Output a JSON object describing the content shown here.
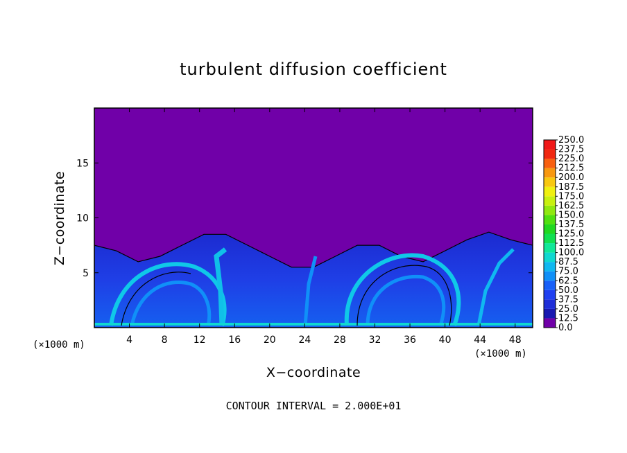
{
  "chart_data": {
    "type": "heatmap",
    "title": "turbulent diffusion coefficient",
    "xlabel": "X−coordinate",
    "ylabel": "Z−coordinate",
    "x_unit": "(×1000 m)",
    "z_unit": "(×1000 m)",
    "xlim": [
      0,
      50
    ],
    "zlim": [
      0,
      20
    ],
    "x_ticks": [
      4,
      8,
      12,
      16,
      20,
      24,
      28,
      32,
      36,
      40,
      44,
      48
    ],
    "z_ticks": [
      5,
      10,
      15
    ],
    "colorbar_levels": [
      "0.0",
      "12.5",
      "25.0",
      "37.5",
      "50.0",
      "62.5",
      "75.0",
      "87.5",
      "100.0",
      "112.5",
      "125.0",
      "137.5",
      "150.0",
      "162.5",
      "175.0",
      "187.5",
      "200.0",
      "212.5",
      "225.0",
      "237.5",
      "250.0"
    ],
    "colorbar_colors": [
      "#7000a8",
      "#1818b0",
      "#1f2ed8",
      "#2040f0",
      "#1860f8",
      "#1090f8",
      "#10b8f0",
      "#10d8d0",
      "#10e898",
      "#10e050",
      "#20d820",
      "#50e010",
      "#90e810",
      "#c8f010",
      "#f0f010",
      "#f8c810",
      "#f89810",
      "#f86010",
      "#f02810",
      "#f01818",
      "#f08888"
    ],
    "note": "CONTOUR INTERVAL = 2.000E+01",
    "turbulent_layer_top_z": [
      7.5,
      7,
      6,
      6.5,
      7.5,
      8.5,
      8.5,
      7.5,
      6.5,
      5.5,
      5.5,
      6.5,
      7.5,
      7.5,
      6.5,
      6,
      7,
      8,
      8.7,
      8,
      7.5
    ]
  }
}
